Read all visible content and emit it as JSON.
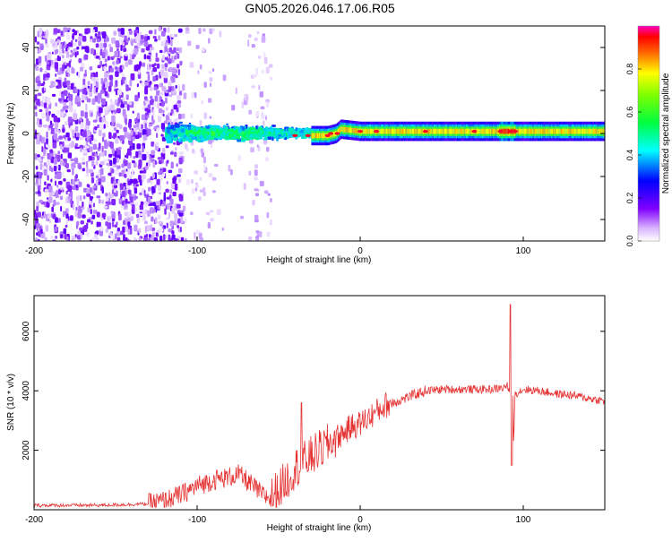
{
  "title": "GN05.2026.046.17.06.R05",
  "colors": {
    "snr_line": "#e53333",
    "colormap": [
      "#ffffff",
      "#e6ccff",
      "#b380ff",
      "#8040ff",
      "#6a00ff",
      "#3300ff",
      "#0000ff",
      "#0080ff",
      "#00ffff",
      "#00ff80",
      "#00ff00",
      "#80ff00",
      "#ffff00",
      "#ff8000",
      "#ff0000",
      "#ff00ff"
    ]
  },
  "chart_data": [
    {
      "type": "heatmap",
      "xlabel": "Height of straight line (km)",
      "ylabel": "Frequency (Hz)",
      "xlim": [
        -200,
        150
      ],
      "ylim": [
        -50,
        50
      ],
      "xticks": [
        "-200",
        "-100",
        "0",
        "100"
      ],
      "yticks": [
        "-40",
        "-20",
        "0",
        "20",
        "40"
      ],
      "colorbar": {
        "label": "Normalized spectral amplitude",
        "range": [
          0,
          1
        ],
        "ticks": [
          "0.0",
          "0.2",
          "0.4",
          "0.6",
          "0.8"
        ]
      },
      "features": {
        "noise_region_km": [
          -200,
          -110
        ],
        "noise_sparse_region_km": [
          -110,
          -55
        ],
        "broad_signal_km": [
          -120,
          -30
        ],
        "narrow_line_km": [
          -30,
          150
        ],
        "line_frequency_hz": [
          [
            -30,
            -1
          ],
          [
            -20,
            -1
          ],
          [
            -15,
            0
          ],
          [
            -12,
            2
          ],
          [
            0,
            1
          ],
          [
            20,
            1
          ],
          [
            60,
            1
          ],
          [
            90,
            1
          ],
          [
            150,
            1
          ]
        ]
      }
    },
    {
      "type": "line",
      "xlabel": "Height of straight line (km)",
      "ylabel": "SNR (10 * v/v)",
      "xlim": [
        -200,
        150
      ],
      "ylim": [
        0,
        7200
      ],
      "xticks": [
        "-200",
        "-100",
        "0",
        "100"
      ],
      "yticks": [
        "2000",
        "4000",
        "6000"
      ],
      "series": [
        {
          "points": [
            [
              -200,
              150
            ],
            [
              -180,
              150
            ],
            [
              -160,
              150
            ],
            [
              -140,
              180
            ],
            [
              -130,
              200
            ],
            [
              -120,
              300
            ],
            [
              -110,
              500
            ],
            [
              -100,
              800
            ],
            [
              -90,
              1000
            ],
            [
              -80,
              1100
            ],
            [
              -75,
              1200
            ],
            [
              -70,
              1000
            ],
            [
              -60,
              500
            ],
            [
              -55,
              400
            ],
            [
              -50,
              700
            ],
            [
              -45,
              1000
            ],
            [
              -40,
              1400
            ],
            [
              -35,
              1600
            ],
            [
              -30,
              1800
            ],
            [
              -20,
              2200
            ],
            [
              -15,
              2400
            ],
            [
              -10,
              2600
            ],
            [
              -5,
              2800
            ],
            [
              0,
              2900
            ],
            [
              5,
              3100
            ],
            [
              10,
              3300
            ],
            [
              15,
              3500
            ],
            [
              20,
              3600
            ],
            [
              25,
              3700
            ],
            [
              30,
              3800
            ],
            [
              35,
              3900
            ],
            [
              40,
              4000
            ],
            [
              50,
              4050
            ],
            [
              60,
              4050
            ],
            [
              70,
              4050
            ],
            [
              80,
              4050
            ],
            [
              88,
              4100
            ],
            [
              90,
              4200
            ],
            [
              92,
              3800
            ],
            [
              93,
              6900
            ],
            [
              94,
              2200
            ],
            [
              95,
              3900
            ],
            [
              100,
              4050
            ],
            [
              110,
              4000
            ],
            [
              120,
              3900
            ],
            [
              130,
              3850
            ],
            [
              140,
              3750
            ],
            [
              150,
              3650
            ]
          ]
        }
      ]
    }
  ]
}
